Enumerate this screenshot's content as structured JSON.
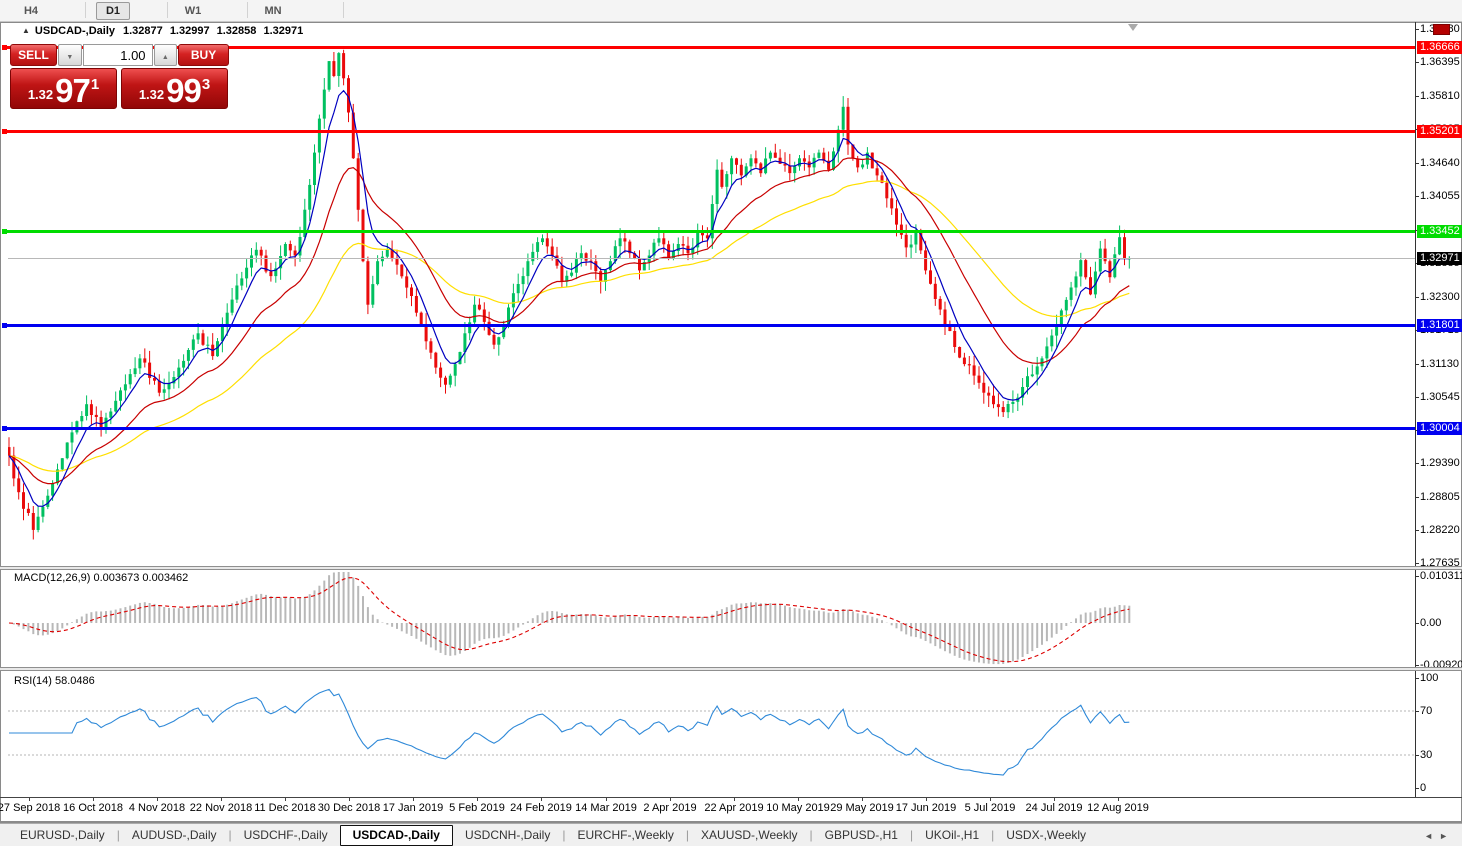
{
  "toolbar": {
    "timeframes": [
      {
        "label": "H4",
        "active": false
      },
      {
        "label": "D1",
        "active": true
      },
      {
        "label": "W1",
        "active": false
      },
      {
        "label": "MN",
        "active": false
      }
    ]
  },
  "title": {
    "arrow": "▲",
    "symbol": "USDCAD-,Daily",
    "quotes": "1.32877 1.32997 1.32858 1.32971"
  },
  "trade": {
    "sell_label": "SELL",
    "buy_label": "BUY",
    "volume": "1.00",
    "sell_price": {
      "small": "1.32",
      "big": "97",
      "sup": "1"
    },
    "buy_price": {
      "small": "1.32",
      "big": "99",
      "sup": "3"
    }
  },
  "icons": {
    "caret_down": "▼",
    "caret_up": "▲",
    "tab_scroll_left": "◄",
    "tab_scroll_right": "►"
  },
  "tabs": {
    "items": [
      "EURUSD-,Daily",
      "AUDUSD-,Daily",
      "USDCHF-,Daily",
      "USDCAD-,Daily",
      "USDCNH-,Daily",
      "EURCHF-,Weekly",
      "XAUUSD-,Weekly",
      "GBPUSD-,H1",
      "UKOil-,H1",
      "USDX-,Weekly"
    ],
    "active_index": 3
  },
  "chart_data": {
    "type": "candlestick",
    "symbol": "USDCAD-",
    "timeframe": "Daily",
    "bar_count": 232,
    "visible_range": {
      "price_top": 1.37103,
      "price_bottom": 1.27555
    },
    "dates": [
      "27 Sep 2018",
      "16 Oct 2018",
      "4 Nov 2018",
      "22 Nov 2018",
      "11 Dec 2018",
      "30 Dec 2018",
      "17 Jan 2019",
      "5 Feb 2019",
      "24 Feb 2019",
      "14 Mar 2019",
      "2 Apr 2019",
      "22 Apr 2019",
      "10 May 2019",
      "29 May 2019",
      "17 Jun 2019",
      "5 Jul 2019",
      "24 Jul 2019",
      "12 Aug 2019"
    ],
    "axis_ticks": [
      "1.36980",
      "1.36395",
      "1.35810",
      "1.35225",
      "1.34640",
      "1.34055",
      "1.33470",
      "1.32885",
      "1.32300",
      "1.31715",
      "1.31130",
      "1.30545",
      "1.29975",
      "1.29390",
      "1.28805",
      "1.28220",
      "1.27635"
    ],
    "levels": [
      {
        "price": 1.36666,
        "label": "1.36666",
        "color": "#fe0000"
      },
      {
        "price": 1.35201,
        "label": "1.35201",
        "color": "#fe0000"
      },
      {
        "price": 1.33452,
        "label": "1.33452",
        "color": "#00dc00"
      },
      {
        "price": 1.31801,
        "label": "1.31801",
        "color": "#0000f0"
      },
      {
        "price": 1.30004,
        "label": "1.30004",
        "color": "#0000f0"
      }
    ],
    "current_price": {
      "value": 1.32971,
      "label": "1.32971",
      "bg": "#000000"
    },
    "close_anchors": [
      [
        0,
        1.2952
      ],
      [
        2,
        1.2888
      ],
      [
        5,
        1.2822
      ],
      [
        8,
        1.2882
      ],
      [
        12,
        1.2975
      ],
      [
        16,
        1.3042
      ],
      [
        19,
        1.3002
      ],
      [
        23,
        1.3066
      ],
      [
        27,
        1.3122
      ],
      [
        31,
        1.3062
      ],
      [
        35,
        1.3106
      ],
      [
        39,
        1.3166
      ],
      [
        42,
        1.3126
      ],
      [
        45,
        1.3202
      ],
      [
        48,
        1.3262
      ],
      [
        51,
        1.3312
      ],
      [
        54,
        1.3266
      ],
      [
        57,
        1.3322
      ],
      [
        59,
        1.3302
      ],
      [
        61,
        1.3382
      ],
      [
        63,
        1.3482
      ],
      [
        65,
        1.3592
      ],
      [
        66,
        1.3642
      ],
      [
        67,
        1.3616
      ],
      [
        68,
        1.3656
      ],
      [
        69,
        1.3612
      ],
      [
        70,
        1.3552
      ],
      [
        71,
        1.3472
      ],
      [
        72,
        1.3382
      ],
      [
        73,
        1.3292
      ],
      [
        74,
        1.3216
      ],
      [
        75,
        1.3252
      ],
      [
        76,
        1.3292
      ],
      [
        78,
        1.3312
      ],
      [
        80,
        1.3286
      ],
      [
        82,
        1.3246
      ],
      [
        84,
        1.3202
      ],
      [
        86,
        1.3152
      ],
      [
        88,
        1.3106
      ],
      [
        90,
        1.3076
      ],
      [
        92,
        1.3112
      ],
      [
        94,
        1.3166
      ],
      [
        96,
        1.3216
      ],
      [
        98,
        1.3186
      ],
      [
        100,
        1.3146
      ],
      [
        102,
        1.3182
      ],
      [
        104,
        1.3236
      ],
      [
        107,
        1.3292
      ],
      [
        110,
        1.3332
      ],
      [
        112,
        1.3302
      ],
      [
        114,
        1.3256
      ],
      [
        116,
        1.3272
      ],
      [
        118,
        1.3306
      ],
      [
        120,
        1.3292
      ],
      [
        122,
        1.3256
      ],
      [
        124,
        1.3292
      ],
      [
        126,
        1.3332
      ],
      [
        128,
        1.3306
      ],
      [
        130,
        1.3276
      ],
      [
        132,
        1.3302
      ],
      [
        134,
        1.3332
      ],
      [
        136,
        1.3296
      ],
      [
        138,
        1.3322
      ],
      [
        140,
        1.3306
      ],
      [
        142,
        1.3342
      ],
      [
        144,
        1.3332
      ],
      [
        145,
        1.3392
      ],
      [
        146,
        1.3452
      ],
      [
        147,
        1.3422
      ],
      [
        149,
        1.3472
      ],
      [
        151,
        1.3442
      ],
      [
        153,
        1.3472
      ],
      [
        155,
        1.3446
      ],
      [
        157,
        1.3482
      ],
      [
        159,
        1.3462
      ],
      [
        161,
        1.3446
      ],
      [
        163,
        1.3472
      ],
      [
        165,
        1.3456
      ],
      [
        167,
        1.3482
      ],
      [
        169,
        1.3452
      ],
      [
        171,
        1.3522
      ],
      [
        172,
        1.3562
      ],
      [
        173,
        1.3496
      ],
      [
        175,
        1.3456
      ],
      [
        177,
        1.3482
      ],
      [
        179,
        1.3442
      ],
      [
        181,
        1.3402
      ],
      [
        183,
        1.3356
      ],
      [
        185,
        1.3316
      ],
      [
        187,
        1.3342
      ],
      [
        189,
        1.3276
      ],
      [
        191,
        1.3226
      ],
      [
        193,
        1.3182
      ],
      [
        195,
        1.3142
      ],
      [
        197,
        1.3112
      ],
      [
        199,
        1.3092
      ],
      [
        201,
        1.3062
      ],
      [
        203,
        1.3042
      ],
      [
        205,
        1.3028
      ],
      [
        207,
        1.3046
      ],
      [
        209,
        1.3072
      ],
      [
        211,
        1.3094
      ],
      [
        213,
        1.3122
      ],
      [
        215,
        1.3162
      ],
      [
        217,
        1.3206
      ],
      [
        219,
        1.3246
      ],
      [
        221,
        1.3294
      ],
      [
        222,
        1.3264
      ],
      [
        223,
        1.3234
      ],
      [
        224,
        1.3274
      ],
      [
        225,
        1.3314
      ],
      [
        226,
        1.3292
      ],
      [
        227,
        1.3264
      ],
      [
        228,
        1.3304
      ],
      [
        229,
        1.3334
      ],
      [
        230,
        1.3296
      ],
      [
        231,
        1.32971
      ]
    ],
    "moving_averages": [
      {
        "name": "slow",
        "period": 45,
        "color": "#ffdf00"
      },
      {
        "name": "medium",
        "period": 20,
        "color": "#c80000"
      },
      {
        "name": "fast",
        "period": 6,
        "color": "#0000c0"
      }
    ],
    "style": {
      "up_color": "#00c060",
      "down_color": "#ea0b0b",
      "hist_color": "#b8b8b8",
      "signal_color": "#dd0000",
      "rsi_color": "#2f89d8"
    },
    "macd": {
      "label": "MACD(12,26,9) 0.003673 0.003462",
      "params": [
        12,
        26,
        9
      ],
      "scale_labels": [
        {
          "text": "0.010311",
          "value": 0.010311
        },
        {
          "text": "0.00",
          "value": 0.0
        },
        {
          "text": "-0.009203",
          "value": -0.009203
        }
      ]
    },
    "rsi": {
      "label": "RSI(14) 58.0486",
      "period": 14,
      "scale_labels": [
        {
          "text": "100",
          "value": 100
        },
        {
          "text": "70",
          "value": 70
        },
        {
          "text": "30",
          "value": 30
        },
        {
          "text": "0",
          "value": 0
        }
      ],
      "guide_levels": [
        70,
        30
      ]
    }
  }
}
